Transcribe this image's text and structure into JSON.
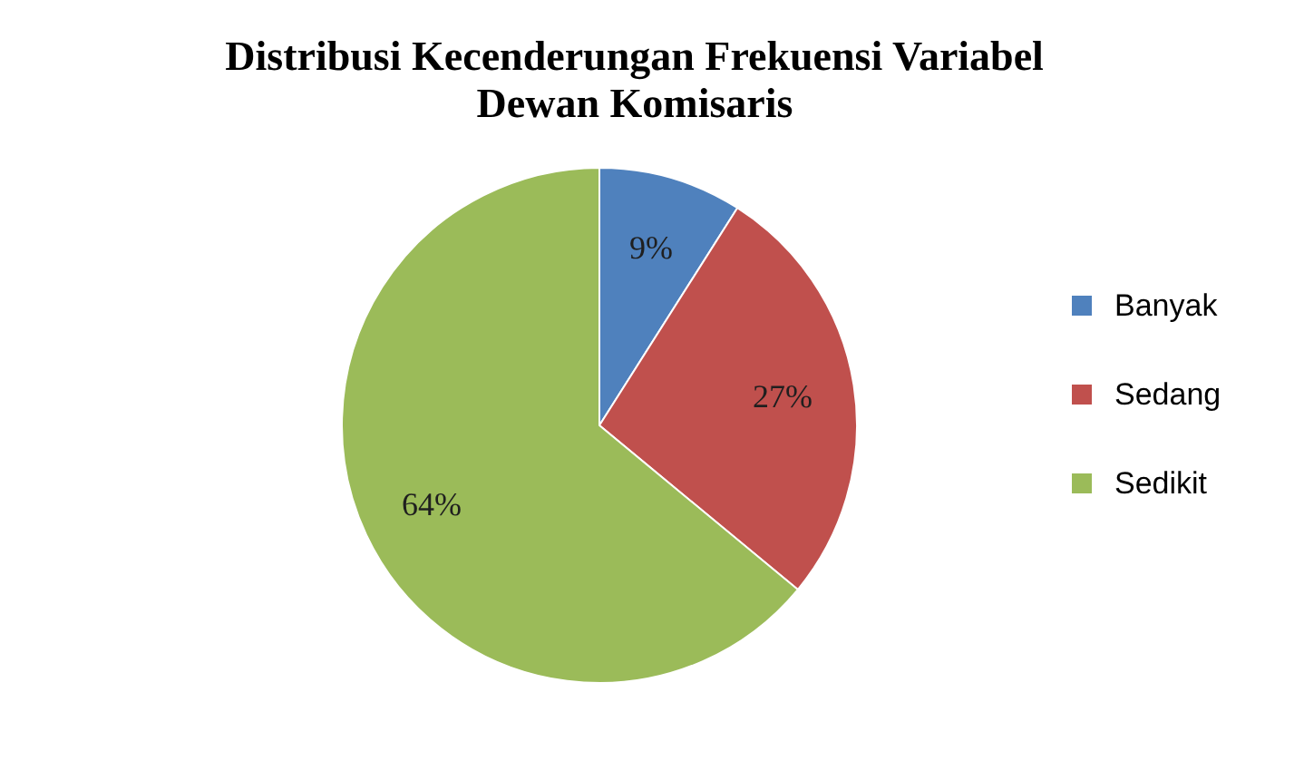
{
  "chart_data": {
    "type": "pie",
    "title": "Distribusi Kecenderungan Frekuensi Variabel\nDewan Komisaris",
    "categories": [
      "Banyak",
      "Sedang",
      "Sedikit"
    ],
    "values": [
      9,
      27,
      64
    ],
    "colors": [
      "#4f81bd",
      "#c0504d",
      "#9bbb59"
    ],
    "value_labels": [
      "9%",
      "27%",
      "64%"
    ],
    "legend": "right"
  }
}
